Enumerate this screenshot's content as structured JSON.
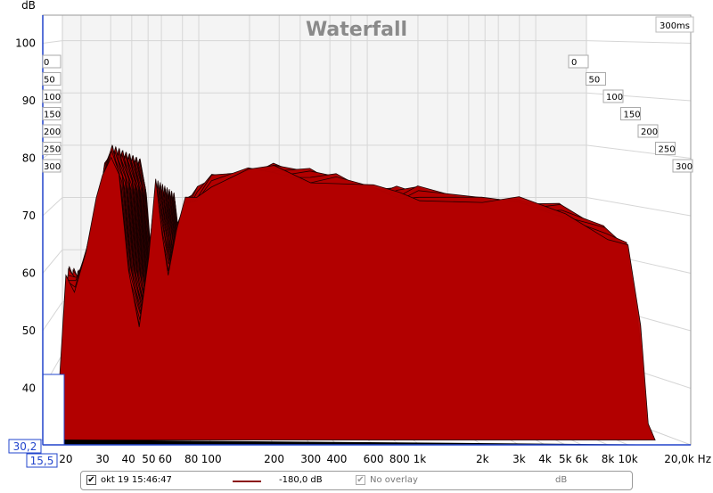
{
  "chart_data": {
    "type": "waterfall",
    "title": "Waterfall",
    "ylabel": "dB",
    "xlabel_unit": "Hz",
    "ylim": [
      30.2,
      100
    ],
    "xlim": [
      15.5,
      20000
    ],
    "x_scale": "log",
    "y_ticks": [
      40,
      50,
      60,
      70,
      80,
      90,
      100
    ],
    "x_ticks": [
      {
        "v": 20,
        "label": "20"
      },
      {
        "v": 30,
        "label": "30"
      },
      {
        "v": 40,
        "label": "40"
      },
      {
        "v": 50,
        "label": "50"
      },
      {
        "v": 60,
        "label": "60"
      },
      {
        "v": 80,
        "label": "80"
      },
      {
        "v": 100,
        "label": "100"
      },
      {
        "v": 200,
        "label": "200"
      },
      {
        "v": 300,
        "label": "300"
      },
      {
        "v": 400,
        "label": "400"
      },
      {
        "v": 600,
        "label": "600"
      },
      {
        "v": 800,
        "label": "800"
      },
      {
        "v": 1000,
        "label": "1k"
      },
      {
        "v": 2000,
        "label": "2k"
      },
      {
        "v": 3000,
        "label": "3k"
      },
      {
        "v": 4000,
        "label": "4k"
      },
      {
        "v": 5000,
        "label": "5k"
      },
      {
        "v": 6000,
        "label": "6k"
      },
      {
        "v": 8000,
        "label": "8k"
      },
      {
        "v": 10000,
        "label": "10k"
      }
    ],
    "x_end_label": "20,0k Hz",
    "y_min_label": "30,2",
    "x_min_label": "15,5",
    "time_axis_ms": [
      "0",
      "50",
      "100",
      "150",
      "200",
      "250",
      "300"
    ],
    "time_corner_label": "300ms",
    "ridge_shape": [
      [
        15.5,
        30.5
      ],
      [
        18,
        31
      ],
      [
        20,
        60
      ],
      [
        22,
        58
      ],
      [
        25,
        63
      ],
      [
        28,
        72
      ],
      [
        30,
        78
      ],
      [
        33,
        81
      ],
      [
        36,
        76
      ],
      [
        40,
        60
      ],
      [
        45,
        52
      ],
      [
        50,
        63
      ],
      [
        54,
        75
      ],
      [
        58,
        67
      ],
      [
        62,
        61
      ],
      [
        68,
        67
      ],
      [
        75,
        72
      ],
      [
        85,
        74
      ],
      [
        100,
        76
      ],
      [
        150,
        77
      ],
      [
        200,
        78
      ],
      [
        300,
        77
      ],
      [
        400,
        76
      ],
      [
        600,
        74
      ],
      [
        800,
        74
      ],
      [
        1000,
        74
      ],
      [
        2000,
        72
      ],
      [
        3000,
        72
      ],
      [
        5000,
        71
      ],
      [
        8000,
        67
      ],
      [
        10000,
        64
      ],
      [
        11500,
        50
      ],
      [
        12500,
        35
      ],
      [
        13500,
        31
      ]
    ],
    "grid": true,
    "fill_color": "#b20000",
    "line_color": "#1a0000"
  },
  "legend": {
    "checkbox_mark": "✔",
    "measurement_name": "okt 19 15:46:47",
    "level": "-180,0 dB",
    "overlay": "No overlay",
    "unit": "dB"
  }
}
